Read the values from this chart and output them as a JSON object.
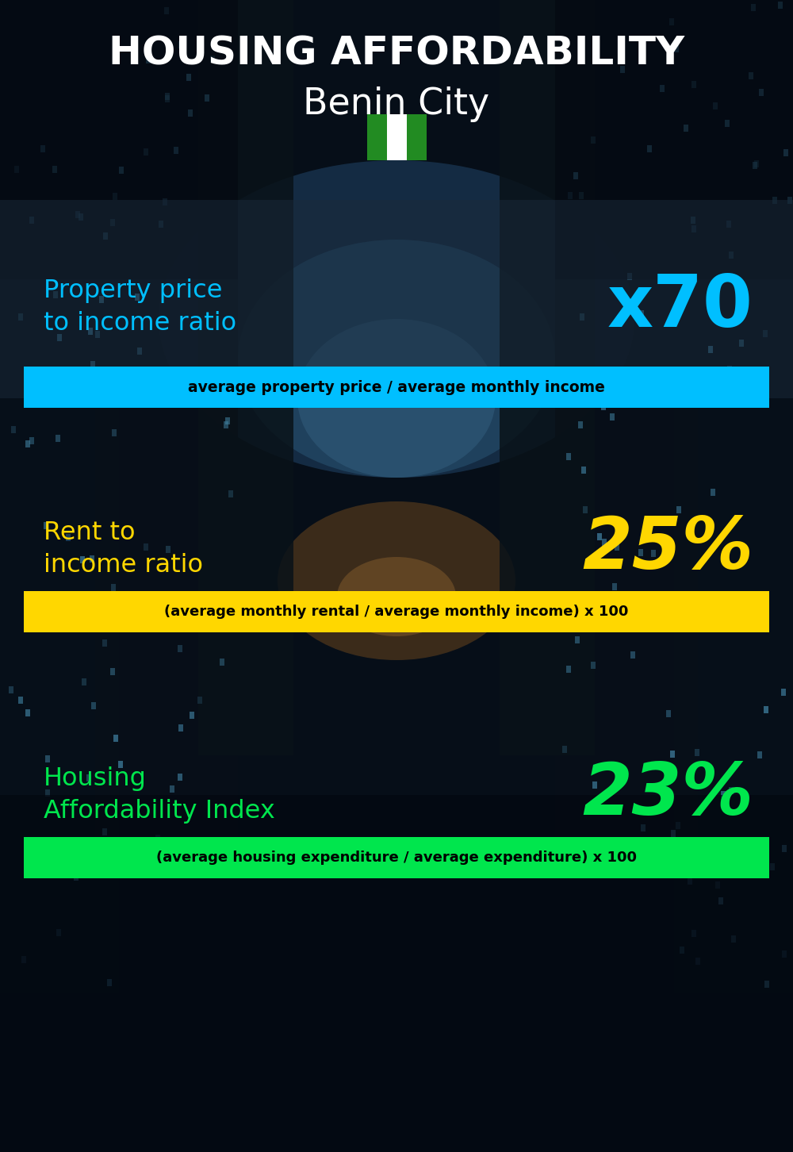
{
  "title_line1": "HOUSING AFFORDABILITY",
  "title_line2": "Benin City",
  "background_color": "#060e18",
  "section1_label": "Property price\nto income ratio",
  "section1_value": "x70",
  "section1_label_color": "#00bfff",
  "section1_value_color": "#00bfff",
  "section1_banner_text": "average property price / average monthly income",
  "section1_banner_bg": "#00bfff",
  "section1_banner_text_color": "#000000",
  "section2_label": "Rent to\nincome ratio",
  "section2_value": "25%",
  "section2_label_color": "#ffd700",
  "section2_value_color": "#ffd700",
  "section2_banner_text": "(average monthly rental / average monthly income) x 100",
  "section2_banner_bg": "#ffd700",
  "section2_banner_text_color": "#000000",
  "section3_label": "Housing\nAffordability Index",
  "section3_value": "23%",
  "section3_label_color": "#00e64d",
  "section3_value_color": "#00e64d",
  "section3_banner_text": "(average housing expenditure / average expenditure) x 100",
  "section3_banner_bg": "#00e64d",
  "section3_banner_text_color": "#000000",
  "title_color": "#ffffff",
  "subtitle_color": "#ffffff",
  "flag_green": "#228B22",
  "flag_white": "#ffffff"
}
